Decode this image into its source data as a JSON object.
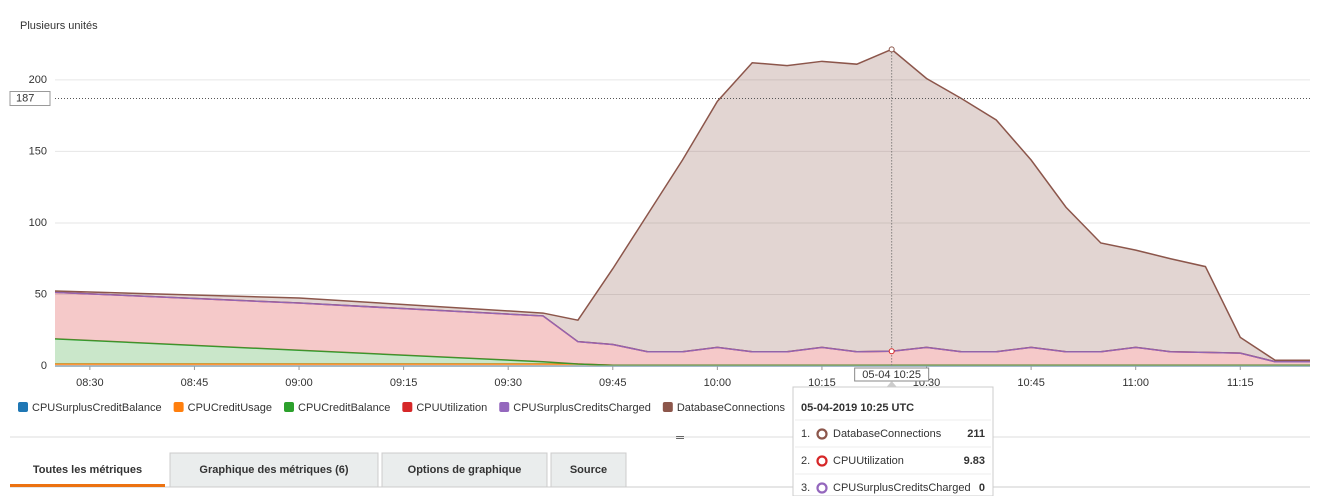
{
  "chart_data": {
    "type": "area",
    "stacked": true,
    "y_label": "Plusieurs unités",
    "x": [
      "08:25",
      "09:00",
      "09:35",
      "09:40",
      "09:45",
      "09:50",
      "09:55",
      "10:00",
      "10:05",
      "10:10",
      "10:15",
      "10:20",
      "10:25",
      "10:30",
      "10:35",
      "10:40",
      "10:45",
      "10:50",
      "10:55",
      "11:00",
      "11:05",
      "11:10",
      "11:15",
      "11:20",
      "11:25"
    ],
    "xlim": [
      "08:25",
      "11:25"
    ],
    "xticks": [
      "08:30",
      "08:45",
      "09:00",
      "09:15",
      "09:30",
      "09:45",
      "10:00",
      "10:15",
      "10:30",
      "10:45",
      "11:00",
      "11:15"
    ],
    "ylim": [
      0,
      230
    ],
    "yticks": [
      0,
      50,
      100,
      150,
      200
    ],
    "grid": true,
    "threshold": 187,
    "hover": {
      "x": "10:25",
      "label": "05-04 10:25"
    },
    "series": [
      {
        "name": "CPUSurplusCreditBalance",
        "color": "#1f77b4",
        "values": [
          0,
          0,
          0,
          0,
          0,
          0,
          0,
          0,
          0,
          0,
          0,
          0,
          0,
          0,
          0,
          0,
          0,
          0,
          0,
          0,
          0,
          0,
          0,
          0,
          0
        ]
      },
      {
        "name": "CPUCreditUsage",
        "color": "#ff7f0e",
        "values": [
          1.4,
          1.4,
          1.4,
          1.4,
          0.5,
          0.5,
          0.5,
          0.5,
          0.5,
          0.5,
          0.5,
          0.5,
          0.5,
          0.5,
          0.5,
          0.5,
          0.5,
          0.5,
          0.5,
          0.5,
          0.5,
          0.5,
          0.5,
          0.5,
          0.5
        ]
      },
      {
        "name": "CPUCreditBalance",
        "color": "#2ca02c",
        "values": [
          17.6,
          9.6,
          1.6,
          0,
          0,
          0,
          0,
          0,
          0,
          0,
          0,
          0,
          0,
          0,
          0,
          0,
          0,
          0,
          0,
          0,
          0,
          0,
          0,
          0,
          0
        ]
      },
      {
        "name": "CPUUtilization",
        "color": "#d62728",
        "values": [
          32.5,
          33,
          32,
          15.6,
          14.5,
          9.5,
          9.5,
          12.5,
          9.5,
          9.5,
          12.5,
          9.5,
          9.83,
          12.5,
          9.5,
          9.5,
          12.5,
          9.5,
          9.5,
          12.5,
          9.5,
          9,
          8.5,
          2.5,
          2.5
        ]
      },
      {
        "name": "CPUSurplusCreditsCharged",
        "color": "#9467bd",
        "values": [
          0,
          0,
          0,
          0,
          0,
          0,
          0,
          0,
          0,
          0,
          0,
          0,
          0,
          0,
          0,
          0,
          0,
          0,
          0,
          0,
          0,
          0,
          0,
          0,
          0
        ]
      },
      {
        "name": "DatabaseConnections",
        "color": "#8c564b",
        "values": [
          0.9,
          3.5,
          2,
          15,
          53,
          96,
          134,
          172,
          202,
          200,
          200,
          201,
          211,
          188,
          177,
          162,
          131,
          101,
          76,
          68,
          65,
          60,
          11,
          1,
          1
        ]
      }
    ]
  },
  "tooltip": {
    "title": "05-04-2019 10:25 UTC",
    "rows": [
      {
        "index": "1.",
        "name": "DatabaseConnections",
        "value": 211
      },
      {
        "index": "2.",
        "name": "CPUUtilization",
        "value": 9.83
      },
      {
        "index": "3.",
        "name": "CPUSurplusCreditsCharged",
        "value": 0
      }
    ]
  },
  "tabs": [
    "Toutes les métriques",
    "Graphique des métriques (6)",
    "Options de graphique",
    "Source"
  ]
}
